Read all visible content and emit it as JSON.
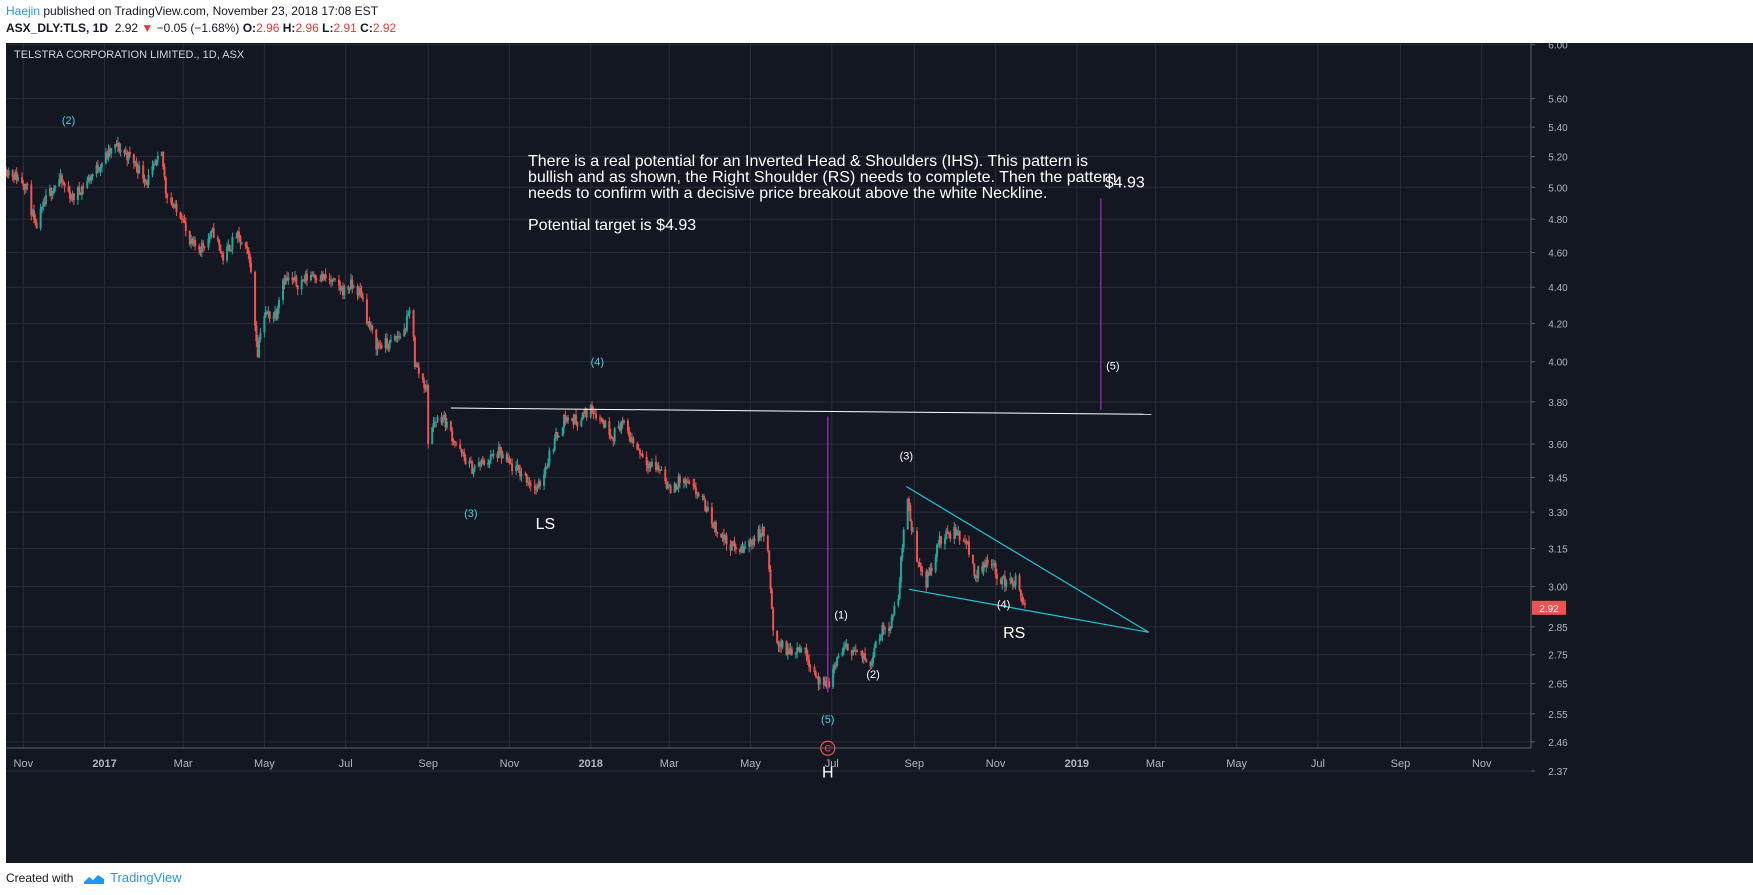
{
  "header": {
    "author": "Haejin",
    "published_text": " published on TradingView.com, November 23, 2018 17:08 EST",
    "symbol": "ASX_DLY:TLS, 1D",
    "last": "2.92",
    "change_arrow": "▼",
    "change": "−0.05 (−1.68%)",
    "o_label": "O:",
    "o": "2.96",
    "h_label": "H:",
    "h": "2.96",
    "l_label": "L:",
    "l": "2.91",
    "c_label": "C:",
    "c": "2.92"
  },
  "footer": {
    "created_with": "Created with",
    "brand": "TradingView"
  },
  "colors": {
    "background": "#131722",
    "up": "#26a69a",
    "down": "#ef5350",
    "wave_label": "#4dd0e1",
    "neckline": "#ffffff",
    "wedge": "#1ec8d8",
    "target_line": "#8e24aa",
    "price_tag": "#ef5350"
  },
  "chart_data": {
    "type": "candlestick",
    "title": "TELSTRA CORPORATION LIMITED., 1D, ASX",
    "x_type": "date",
    "x_range": [
      "2016-10-19",
      "2019-12-08"
    ],
    "y_ticks": [
      6.0,
      5.6,
      5.4,
      5.2,
      5.0,
      4.8,
      4.6,
      4.4,
      4.2,
      4.0,
      3.8,
      3.6,
      3.45,
      3.3,
      3.15,
      3.0,
      2.85,
      2.75,
      2.65,
      2.55,
      2.46,
      2.37
    ],
    "y_tick_labels": [
      "6.00",
      "5.60",
      "5.40",
      "5.20",
      "5.00",
      "4.80",
      "4.60",
      "4.40",
      "4.20",
      "4.00",
      "3.80",
      "3.60",
      "3.45",
      "3.30",
      "3.15",
      "3.00",
      "2.85",
      "2.75",
      "2.65",
      "2.55",
      "2.46",
      "2.37"
    ],
    "scale": "log",
    "x_ticks": [
      {
        "date": "2016-11-01",
        "label": "Nov"
      },
      {
        "date": "2017-01-01",
        "label": "2017",
        "bold": true
      },
      {
        "date": "2017-03-01",
        "label": "Mar"
      },
      {
        "date": "2017-05-01",
        "label": "May"
      },
      {
        "date": "2017-07-01",
        "label": "Jul"
      },
      {
        "date": "2017-09-01",
        "label": "Sep"
      },
      {
        "date": "2017-11-01",
        "label": "Nov"
      },
      {
        "date": "2018-01-01",
        "label": "2018",
        "bold": true
      },
      {
        "date": "2018-03-01",
        "label": "Mar"
      },
      {
        "date": "2018-05-01",
        "label": "May"
      },
      {
        "date": "2018-07-01",
        "label": "Jul"
      },
      {
        "date": "2018-09-01",
        "label": "Sep"
      },
      {
        "date": "2018-11-01",
        "label": "Nov"
      },
      {
        "date": "2019-01-01",
        "label": "2019",
        "bold": true
      },
      {
        "date": "2019-03-01",
        "label": "Mar"
      },
      {
        "date": "2019-05-01",
        "label": "May"
      },
      {
        "date": "2019-07-01",
        "label": "Jul"
      },
      {
        "date": "2019-09-01",
        "label": "Sep"
      },
      {
        "date": "2019-11-01",
        "label": "Nov"
      }
    ],
    "last_price": 2.92,
    "last_price_label": "2.92",
    "price_path": [
      [
        "2016-10-19",
        5.12
      ],
      [
        "2016-11-03",
        5.02
      ],
      [
        "2016-11-10",
        4.74
      ],
      [
        "2016-11-20",
        4.96
      ],
      [
        "2016-11-28",
        5.05
      ],
      [
        "2016-12-08",
        4.93
      ],
      [
        "2016-12-20",
        5.05
      ],
      [
        "2017-01-02",
        5.2
      ],
      [
        "2017-01-10",
        5.27
      ],
      [
        "2017-01-22",
        5.18
      ],
      [
        "2017-02-02",
        5.04
      ],
      [
        "2017-02-13",
        5.21
      ],
      [
        "2017-02-16",
        4.98
      ],
      [
        "2017-02-24",
        4.84
      ],
      [
        "2017-03-01",
        4.83
      ],
      [
        "2017-03-04",
        4.65
      ],
      [
        "2017-03-14",
        4.63
      ],
      [
        "2017-03-24",
        4.72
      ],
      [
        "2017-03-31",
        4.57
      ],
      [
        "2017-04-10",
        4.7
      ],
      [
        "2017-04-20",
        4.57
      ],
      [
        "2017-04-23",
        4.27
      ],
      [
        "2017-04-26",
        4.05
      ],
      [
        "2017-04-29",
        4.24
      ],
      [
        "2017-05-10",
        4.26
      ],
      [
        "2017-05-14",
        4.45
      ],
      [
        "2017-05-27",
        4.42
      ],
      [
        "2017-06-06",
        4.48
      ],
      [
        "2017-06-18",
        4.44
      ],
      [
        "2017-06-30",
        4.38
      ],
      [
        "2017-07-05",
        4.41
      ],
      [
        "2017-07-13",
        4.36
      ],
      [
        "2017-07-18",
        4.2
      ],
      [
        "2017-07-24",
        4.09
      ],
      [
        "2017-08-03",
        4.09
      ],
      [
        "2017-08-14",
        4.16
      ],
      [
        "2017-08-20",
        4.31
      ],
      [
        "2017-08-22",
        3.99
      ],
      [
        "2017-08-31",
        3.86
      ],
      [
        "2017-09-01",
        3.62
      ],
      [
        "2017-09-06",
        3.71
      ],
      [
        "2017-09-12",
        3.73
      ],
      [
        "2017-09-25",
        3.56
      ],
      [
        "2017-10-04",
        3.49
      ],
      [
        "2017-10-14",
        3.52
      ],
      [
        "2017-10-24",
        3.56
      ],
      [
        "2017-11-02",
        3.5
      ],
      [
        "2017-11-12",
        3.46
      ],
      [
        "2017-11-22",
        3.39
      ],
      [
        "2017-12-02",
        3.57
      ],
      [
        "2017-12-12",
        3.72
      ],
      [
        "2017-12-22",
        3.71
      ],
      [
        "2018-01-02",
        3.77
      ],
      [
        "2018-01-12",
        3.69
      ],
      [
        "2018-01-18",
        3.64
      ],
      [
        "2018-01-24",
        3.7
      ],
      [
        "2018-02-03",
        3.6
      ],
      [
        "2018-02-14",
        3.51
      ],
      [
        "2018-02-24",
        3.48
      ],
      [
        "2018-03-01",
        3.39
      ],
      [
        "2018-03-10",
        3.44
      ],
      [
        "2018-03-16",
        3.41
      ],
      [
        "2018-03-24",
        3.37
      ],
      [
        "2018-04-04",
        3.24
      ],
      [
        "2018-04-14",
        3.17
      ],
      [
        "2018-04-24",
        3.14
      ],
      [
        "2018-05-03",
        3.19
      ],
      [
        "2018-05-10",
        3.22
      ],
      [
        "2018-05-14",
        3.14
      ],
      [
        "2018-05-18",
        2.82
      ],
      [
        "2018-05-28",
        2.76
      ],
      [
        "2018-06-08",
        2.78
      ],
      [
        "2018-06-14",
        2.73
      ],
      [
        "2018-06-18",
        2.69
      ],
      [
        "2018-06-24",
        2.63
      ],
      [
        "2018-06-30",
        2.66
      ],
      [
        "2018-07-06",
        2.75
      ],
      [
        "2018-07-14",
        2.78
      ],
      [
        "2018-07-24",
        2.74
      ],
      [
        "2018-07-30",
        2.72
      ],
      [
        "2018-08-04",
        2.82
      ],
      [
        "2018-08-14",
        2.86
      ],
      [
        "2018-08-20",
        2.96
      ],
      [
        "2018-08-26",
        3.38
      ],
      [
        "2018-09-02",
        3.13
      ],
      [
        "2018-09-10",
        3.02
      ],
      [
        "2018-09-20",
        3.18
      ],
      [
        "2018-10-01",
        3.22
      ],
      [
        "2018-10-10",
        3.18
      ],
      [
        "2018-10-17",
        3.04
      ],
      [
        "2018-10-26",
        3.11
      ],
      [
        "2018-11-06",
        3.02
      ],
      [
        "2018-11-16",
        3.02
      ],
      [
        "2018-11-23",
        2.92
      ]
    ],
    "annotations": {
      "wave_labels": [
        {
          "text": "(2)",
          "date": "2016-12-05",
          "price": 5.42,
          "color": "cyan"
        },
        {
          "text": "(3)",
          "date": "2017-10-03",
          "price": 3.28,
          "color": "cyan"
        },
        {
          "text": "(4)",
          "date": "2018-01-06",
          "price": 3.98,
          "color": "cyan"
        },
        {
          "text": "(5)",
          "date": "2018-06-28",
          "price": 2.52,
          "color": "cyan"
        },
        {
          "text": "(1)",
          "date": "2018-07-08",
          "price": 2.88,
          "color": "white"
        },
        {
          "text": "(2)",
          "date": "2018-08-01",
          "price": 2.67,
          "color": "white"
        },
        {
          "text": "(3)",
          "date": "2018-08-26",
          "price": 3.53,
          "color": "white"
        },
        {
          "text": "(4)",
          "date": "2018-11-07",
          "price": 2.92,
          "color": "white"
        },
        {
          "text": "(5)",
          "date": "2019-01-28",
          "price": 3.96,
          "color": "white"
        }
      ],
      "pattern_labels": [
        {
          "text": "LS",
          "date": "2017-11-28",
          "price": 3.23
        },
        {
          "text": "H",
          "date": "2018-06-28",
          "price": 2.35
        },
        {
          "text": "RS",
          "date": "2018-11-15",
          "price": 2.81
        },
        {
          "text": "$4.93",
          "date": "2019-02-06",
          "price": 5.0
        }
      ],
      "circle_label": {
        "text": "C",
        "date": "2018-06-28",
        "price": 2.44
      },
      "note_lines": [
        "There is a real potential for an Inverted Head & Shoulders (IHS). This pattern is",
        "bullish and as shown, the Right Shoulder (RS) needs to complete. Then the pattern",
        "needs to confirm with a decisive price breakout above the white Neckline."
      ],
      "note_target": "Potential target is $4.93",
      "neckline": [
        [
          "2017-09-18",
          3.77
        ],
        [
          "2019-02-26",
          3.74
        ]
      ],
      "head_line": [
        [
          "2018-06-28",
          2.62
        ],
        [
          "2018-06-28",
          3.73
        ]
      ],
      "target_line": [
        [
          "2019-01-19",
          3.76
        ],
        [
          "2019-01-19",
          4.93
        ]
      ],
      "wedge_upper": [
        [
          "2018-08-26",
          3.41
        ],
        [
          "2019-02-24",
          2.83
        ]
      ],
      "wedge_lower": [
        [
          "2018-08-28",
          2.99
        ],
        [
          "2019-02-24",
          2.83
        ]
      ]
    }
  }
}
